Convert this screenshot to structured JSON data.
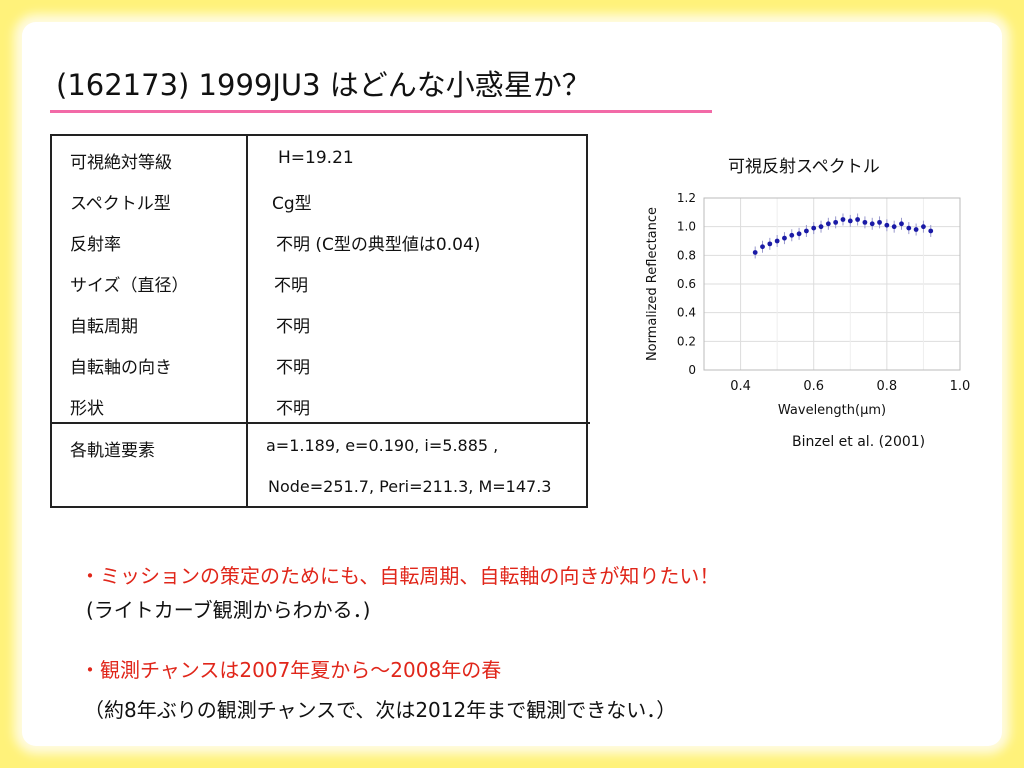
{
  "title": "(162173) 1999JU3 はどんな小惑星か？",
  "table": {
    "rows": [
      {
        "label": "可視絶対等級",
        "value": "H=19.21"
      },
      {
        "label": "スペクトル型",
        "value": "Cg型"
      },
      {
        "label": "反射率",
        "value": "不明 (C型の典型値は0.04)"
      },
      {
        "label": "サイズ（直径）",
        "value": "不明"
      },
      {
        "label": "自転周期",
        "value": "不明"
      },
      {
        "label": "自転軸の向き",
        "value": "不明"
      },
      {
        "label": "形状",
        "value": "不明"
      }
    ],
    "orbit": {
      "label": "各軌道要素",
      "line1": "a=1.189, e=0.190, i=5.885 ,",
      "line2": "Node=251.7, Peri=211.3, M=147.3"
    }
  },
  "chart_title": "可視反射スペクトル",
  "citation": "Binzel et al. (2001)",
  "chart_data": {
    "type": "scatter",
    "xlabel": "Wavelength(μm)",
    "ylabel": "Normalized  Reflectance",
    "xlim": [
      0.3,
      1.0
    ],
    "ylim": [
      0,
      1.2
    ],
    "x_ticks": [
      "0.4",
      "0.6",
      "0.8",
      "1.0"
    ],
    "y_ticks": [
      "0",
      "0.2",
      "0.4",
      "0.6",
      "0.8",
      "1.0",
      "1.2"
    ],
    "x_tick_values": [
      0.4,
      0.6,
      0.8,
      1.0
    ],
    "y_tick_values": [
      0,
      0.2,
      0.4,
      0.6,
      0.8,
      1.0,
      1.2
    ],
    "grid": true,
    "color": "#1a1aa6",
    "series": [
      {
        "x": [
          0.44,
          0.46,
          0.48,
          0.5,
          0.52,
          0.54,
          0.56,
          0.58,
          0.6,
          0.62,
          0.64,
          0.66,
          0.68,
          0.7,
          0.72,
          0.74,
          0.76,
          0.78,
          0.8,
          0.82,
          0.84,
          0.86,
          0.88,
          0.9,
          0.92
        ],
        "y": [
          0.82,
          0.86,
          0.88,
          0.9,
          0.92,
          0.94,
          0.95,
          0.97,
          0.99,
          1.0,
          1.02,
          1.03,
          1.05,
          1.04,
          1.05,
          1.03,
          1.02,
          1.03,
          1.01,
          1.0,
          1.02,
          0.99,
          0.98,
          1.0,
          0.97
        ]
      }
    ]
  },
  "notes": {
    "line1": "・ミッションの策定のためにも、自転周期、自転軸の向きが知りたい！",
    "line2": "(ライトカーブ観測からわかる．)",
    "line3": "・観測チャンスは2007年夏から～2008年の春",
    "line4": "（約8年ぶりの観測チャンスで、次は2012年まで観測できない．）"
  }
}
